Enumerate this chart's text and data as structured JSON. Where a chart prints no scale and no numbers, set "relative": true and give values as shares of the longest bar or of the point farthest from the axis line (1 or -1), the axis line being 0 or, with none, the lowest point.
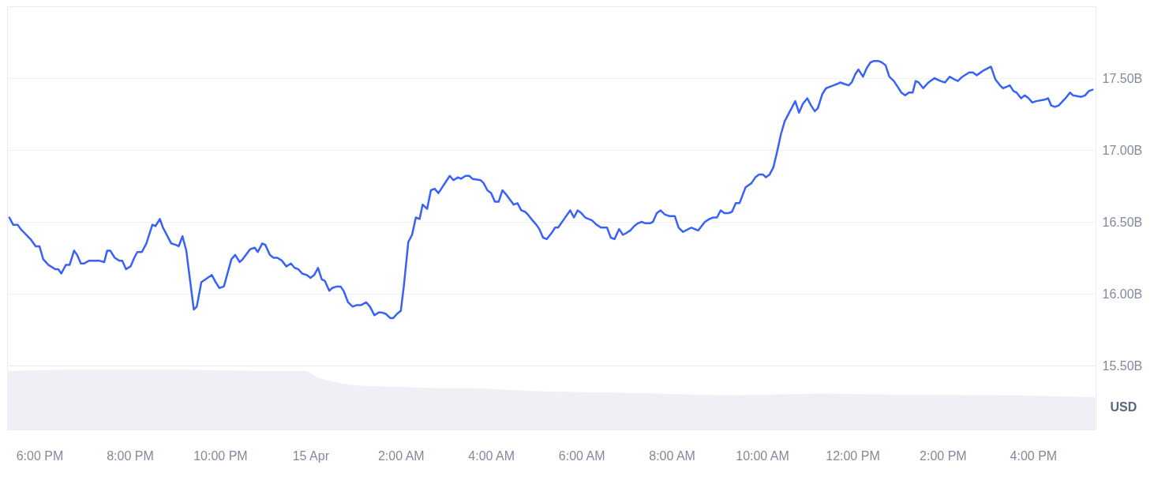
{
  "chart_data": [
    {
      "type": "line",
      "x": [
        "--04-14T17:20",
        "--04-14T17:25",
        "--04-14T17:31",
        "--04-14T17:35",
        "--04-14T17:48",
        "--04-14T17:55",
        "--04-14T18:00",
        "--04-14T18:05",
        "--04-14T18:12",
        "--04-14T18:21",
        "--04-14T18:25",
        "--04-14T18:29",
        "--04-14T18:35",
        "--04-14T18:40",
        "--04-14T18:46",
        "--04-14T18:50",
        "--04-14T18:55",
        "--04-14T18:59",
        "--04-14T19:06",
        "--04-14T19:19",
        "--04-14T19:26",
        "--04-14T19:30",
        "--04-14T19:34",
        "--04-14T19:40",
        "--04-14T19:46",
        "--04-14T19:50",
        "--04-14T19:55",
        "--04-14T20:01",
        "--04-14T20:06",
        "--04-14T20:10",
        "--04-14T20:16",
        "--04-14T20:22",
        "--04-14T20:30",
        "--04-14T20:34",
        "--04-14T20:40",
        "--04-14T20:44",
        "--04-14T20:50",
        "--04-14T20:55",
        "--04-14T21:01",
        "--04-14T21:05",
        "--04-14T21:10",
        "--04-14T21:15",
        "--04-14T21:25",
        "--04-14T21:29",
        "--04-14T21:35",
        "--04-14T21:49",
        "--04-14T21:54",
        "--04-14T21:59",
        "--04-14T22:05",
        "--04-14T22:15",
        "--04-14T22:20",
        "--04-14T22:26",
        "--04-14T22:30",
        "--04-14T22:40",
        "--04-14T22:46",
        "--04-14T22:50",
        "--04-14T22:56",
        "--04-14T23:00",
        "--04-14T23:06",
        "--04-14T23:11",
        "--04-14T23:16",
        "--04-14T23:22",
        "--04-14T23:28",
        "--04-14T23:34",
        "--04-14T23:39",
        "--04-14T23:44",
        "--04-14T23:49",
        "--04-14T23:55",
        "--04-15T00:00",
        "--04-15T00:05",
        "--04-15T00:10",
        "--04-15T00:15",
        "--04-15T00:19",
        "--04-15T00:25",
        "--04-15T00:29",
        "--04-15T00:35",
        "--04-15T00:40",
        "--04-15T00:44",
        "--04-15T00:50",
        "--04-15T00:56",
        "--04-15T01:01",
        "--04-15T01:07",
        "--04-15T01:14",
        "--04-15T01:19",
        "--04-15T01:25",
        "--04-15T01:31",
        "--04-15T01:34",
        "--04-15T01:40",
        "--04-15T01:46",
        "--04-15T01:50",
        "--04-15T01:55",
        "--04-15T02:00",
        "--04-15T02:04",
        "--04-15T02:10",
        "--04-15T02:15",
        "--04-15T02:20",
        "--04-15T02:25",
        "--04-15T02:29",
        "--04-15T02:35",
        "--04-15T02:40",
        "--04-15T02:45",
        "--04-15T02:50",
        "--04-15T03:00",
        "--04-15T03:05",
        "--04-15T03:10",
        "--04-15T03:16",
        "--04-15T03:20",
        "--04-15T03:26",
        "--04-15T03:31",
        "--04-15T03:35",
        "--04-15T03:46",
        "--04-15T03:50",
        "--04-15T03:55",
        "--04-15T04:00",
        "--04-15T04:05",
        "--04-15T04:10",
        "--04-15T04:15",
        "--04-15T04:20",
        "--04-15T04:30",
        "--04-15T04:35",
        "--04-15T04:40",
        "--04-15T04:45",
        "--04-15T04:49",
        "--04-15T04:55",
        "--04-15T05:00",
        "--04-15T05:04",
        "--04-15T05:09",
        "--04-15T05:14",
        "--04-15T05:20",
        "--04-15T05:25",
        "--04-15T05:29",
        "--04-15T05:37",
        "--04-15T05:45",
        "--04-15T05:50",
        "--04-15T05:55",
        "--04-15T06:00",
        "--04-15T06:05",
        "--04-15T06:14",
        "--04-15T06:20",
        "--04-15T06:26",
        "--04-15T06:34",
        "--04-15T06:39",
        "--04-15T06:44",
        "--04-15T06:50",
        "--04-15T06:55",
        "--04-15T06:59",
        "--04-15T07:05",
        "--04-15T07:10",
        "--04-15T07:15",
        "--04-15T07:20",
        "--04-15T07:25",
        "--04-15T07:31",
        "--04-15T07:35",
        "--04-15T07:40",
        "--04-15T07:45",
        "--04-15T07:51",
        "--04-15T07:57",
        "--04-15T08:04",
        "--04-15T08:09",
        "--04-15T08:15",
        "--04-15T08:22",
        "--04-15T08:26",
        "--04-15T08:35",
        "--04-15T08:44",
        "--04-15T08:50",
        "--04-15T08:55",
        "--04-15T09:00",
        "--04-15T09:05",
        "--04-15T09:10",
        "--04-15T09:15",
        "--04-15T09:20",
        "--04-15T09:25",
        "--04-15T09:30",
        "--04-15T09:38",
        "--04-15T09:46",
        "--04-15T09:51",
        "--04-15T09:56",
        "--04-15T10:01",
        "--04-15T10:05",
        "--04-15T10:10",
        "--04-15T10:15",
        "--04-15T10:20",
        "--04-15T10:25",
        "--04-15T10:30",
        "--04-15T10:37",
        "--04-15T10:44",
        "--04-15T10:49",
        "--04-15T10:54",
        "--04-15T11:00",
        "--04-15T11:05",
        "--04-15T11:10",
        "--04-15T11:14",
        "--04-15T11:20",
        "--04-15T11:25",
        "--04-15T11:30",
        "--04-15T11:35",
        "--04-15T11:40",
        "--04-15T11:44",
        "--04-15T11:49",
        "--04-15T11:55",
        "--04-15T11:59",
        "--04-15T12:04",
        "--04-15T12:08",
        "--04-15T12:14",
        "--04-15T12:19",
        "--04-15T12:24",
        "--04-15T12:29",
        "--04-15T12:34",
        "--04-15T12:39",
        "--04-15T12:44",
        "--04-15T12:49",
        "--04-15T12:55",
        "--04-15T13:00",
        "--04-15T13:05",
        "--04-15T13:10",
        "--04-15T13:15",
        "--04-15T13:20",
        "--04-15T13:24",
        "--04-15T13:28",
        "--04-15T13:34",
        "--04-15T13:41",
        "--04-15T13:49",
        "--04-15T13:57",
        "--04-15T14:03",
        "--04-15T14:09",
        "--04-15T14:16",
        "--04-15T14:20",
        "--04-15T14:26",
        "--04-15T14:35",
        "--04-15T14:40",
        "--04-15T14:45",
        "--04-15T14:53",
        "--04-15T15:04",
        "--04-15T15:10",
        "--04-15T15:16",
        "--04-15T15:20",
        "--04-15T15:25",
        "--04-15T15:29",
        "--04-15T15:34",
        "--04-15T15:38",
        "--04-15T15:44",
        "--04-15T15:49",
        "--04-15T15:54",
        "--04-15T15:59",
        "--04-15T16:04",
        "--04-15T16:15",
        "--04-15T16:20",
        "--04-15T16:24",
        "--04-15T16:29",
        "--04-15T16:34",
        "--04-15T16:43",
        "--04-15T16:49",
        "--04-15T16:53",
        "--04-15T17:04",
        "--04-15T17:09",
        "--04-15T17:14",
        "--04-15T17:19"
      ],
      "series": [
        {
          "color": "#3861fb",
          "values": [
            16.53,
            16.48,
            16.48,
            16.45,
            16.38,
            16.33,
            16.33,
            16.24,
            16.2,
            16.17,
            16.17,
            16.14,
            16.2,
            16.2,
            16.3,
            16.27,
            16.21,
            16.21,
            16.23,
            16.23,
            16.22,
            16.3,
            16.3,
            16.25,
            16.23,
            16.23,
            16.17,
            16.19,
            16.25,
            16.29,
            16.29,
            16.35,
            16.48,
            16.47,
            16.52,
            16.46,
            16.4,
            16.35,
            16.34,
            16.33,
            16.4,
            16.3,
            15.89,
            15.91,
            16.08,
            16.13,
            16.08,
            16.04,
            16.05,
            16.24,
            16.27,
            16.22,
            16.24,
            16.31,
            16.32,
            16.29,
            16.35,
            16.34,
            16.27,
            16.25,
            16.25,
            16.23,
            16.19,
            16.21,
            16.18,
            16.17,
            16.14,
            16.13,
            16.11,
            16.13,
            16.18,
            16.1,
            16.09,
            16.02,
            16.04,
            16.05,
            16.05,
            16.02,
            15.94,
            15.91,
            15.92,
            15.92,
            15.94,
            15.91,
            15.85,
            15.87,
            15.87,
            15.86,
            15.83,
            15.83,
            15.86,
            15.88,
            16.05,
            16.36,
            16.41,
            16.53,
            16.52,
            16.62,
            16.59,
            16.72,
            16.73,
            16.7,
            16.78,
            16.82,
            16.79,
            16.81,
            16.8,
            16.82,
            16.82,
            16.8,
            16.79,
            16.77,
            16.72,
            16.7,
            16.64,
            16.64,
            16.72,
            16.69,
            16.62,
            16.63,
            16.58,
            16.57,
            16.55,
            16.51,
            16.48,
            16.45,
            16.39,
            16.38,
            16.42,
            16.46,
            16.46,
            16.52,
            16.58,
            16.53,
            16.58,
            16.56,
            16.53,
            16.51,
            16.48,
            16.46,
            16.46,
            16.39,
            16.38,
            16.45,
            16.41,
            16.42,
            16.44,
            16.47,
            16.49,
            16.5,
            16.49,
            16.49,
            16.5,
            16.56,
            16.58,
            16.55,
            16.54,
            16.54,
            16.46,
            16.43,
            16.45,
            16.46,
            16.44,
            16.5,
            16.52,
            16.53,
            16.53,
            16.58,
            16.56,
            16.56,
            16.57,
            16.63,
            16.63,
            16.74,
            16.77,
            16.81,
            16.83,
            16.83,
            16.81,
            16.83,
            16.88,
            16.99,
            17.11,
            17.2,
            17.27,
            17.34,
            17.26,
            17.32,
            17.36,
            17.31,
            17.27,
            17.29,
            17.39,
            17.43,
            17.44,
            17.45,
            17.46,
            17.47,
            17.46,
            17.45,
            17.47,
            17.53,
            17.56,
            17.51,
            17.57,
            17.61,
            17.62,
            17.62,
            17.61,
            17.59,
            17.51,
            17.48,
            17.44,
            17.4,
            17.38,
            17.4,
            17.4,
            17.48,
            17.47,
            17.43,
            17.47,
            17.5,
            17.48,
            17.47,
            17.51,
            17.49,
            17.48,
            17.51,
            17.54,
            17.54,
            17.52,
            17.55,
            17.58,
            17.49,
            17.45,
            17.43,
            17.44,
            17.45,
            17.41,
            17.4,
            17.36,
            17.38,
            17.36,
            17.33,
            17.34,
            17.35,
            17.36,
            17.31,
            17.3,
            17.31,
            17.36,
            17.4,
            17.38,
            17.37,
            17.38,
            17.41,
            17.42
          ]
        }
      ],
      "xlim": [
        "--04-14T17:17",
        "--04-15T17:23"
      ],
      "ylim": [
        15.5,
        18.0
      ],
      "yticks": [
        {
          "value": 15.5,
          "label": "15.50B"
        },
        {
          "value": 16.0,
          "label": "16.00B"
        },
        {
          "value": 16.5,
          "label": "16.50B"
        },
        {
          "value": 17.0,
          "label": "17.00B"
        },
        {
          "value": 17.5,
          "label": "17.50B"
        }
      ],
      "grid": "y",
      "tick_labels": "y"
    },
    {
      "type": "area",
      "x": [
        "--04-14T17:17",
        "--04-14T18:43",
        "--04-14T21:11",
        "--04-14T22:44",
        "--04-14T23:55",
        "--04-15T00:11",
        "--04-15T00:37",
        "--04-15T00:59",
        "--04-15T01:33",
        "--04-15T02:52",
        "--04-15T03:37",
        "--04-15T05:01",
        "--04-15T07:06",
        "--04-15T09:12",
        "--04-15T11:18",
        "--04-15T13:13",
        "--04-15T15:40",
        "--04-15T17:22"
      ],
      "series": [
        {
          "color": "#eef0f5",
          "values": [
            0.98,
            1,
            1,
            0.98,
            0.98,
            0.86,
            0.78,
            0.74,
            0.72,
            0.69,
            0.69,
            0.64,
            0.61,
            0.57,
            0.6,
            0.58,
            0.57,
            0.54
          ]
        }
      ],
      "relative": true,
      "xlim": [
        "--04-14T17:17",
        "--04-15T17:23"
      ],
      "xticks": [
        {
          "value": "--04-14T18:00",
          "label": "6:00 PM"
        },
        {
          "value": "--04-14T20:00",
          "label": "8:00 PM"
        },
        {
          "value": "--04-14T22:00",
          "label": "10:00 PM"
        },
        {
          "value": "--04-15T00:00",
          "label": "15 Apr"
        },
        {
          "value": "--04-15T02:00",
          "label": "2:00 AM"
        },
        {
          "value": "--04-15T04:00",
          "label": "4:00 AM"
        },
        {
          "value": "--04-15T06:00",
          "label": "6:00 AM"
        },
        {
          "value": "--04-15T08:00",
          "label": "8:00 AM"
        },
        {
          "value": "--04-15T10:00",
          "label": "10:00 AM"
        },
        {
          "value": "--04-15T12:00",
          "label": "12:00 PM"
        },
        {
          "value": "--04-15T14:00",
          "label": "2:00 PM"
        },
        {
          "value": "--04-15T16:00",
          "label": "4:00 PM"
        }
      ],
      "ylabel": "USD",
      "tick_labels": "x"
    }
  ]
}
